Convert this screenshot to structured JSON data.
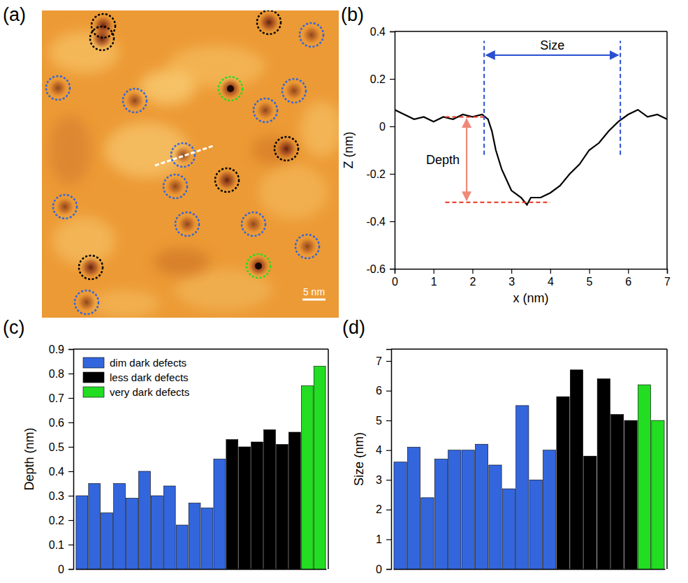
{
  "chart_data": [
    {
      "type": "image",
      "panel": "(a)",
      "scale_bar": "5 nm"
    },
    {
      "type": "line",
      "panel": "(b)",
      "x_label": "x (nm)",
      "y_label": "Z (nm)",
      "color": "#000000",
      "x": [
        0,
        0.25,
        0.5,
        0.75,
        1.0,
        1.25,
        1.5,
        1.75,
        2.0,
        2.25,
        2.4,
        2.5,
        2.6,
        2.75,
        3.0,
        3.25,
        3.4,
        3.5,
        3.75,
        4.0,
        4.25,
        4.5,
        4.75,
        5.0,
        5.25,
        5.5,
        5.75,
        6.0,
        6.25,
        6.5,
        6.75,
        7.0
      ],
      "values": [
        0.07,
        0.05,
        0.03,
        0.04,
        0.02,
        0.04,
        0.03,
        0.05,
        0.04,
        0.05,
        0.03,
        -0.02,
        -0.1,
        -0.18,
        -0.27,
        -0.3,
        -0.33,
        -0.3,
        -0.3,
        -0.28,
        -0.25,
        -0.2,
        -0.16,
        -0.1,
        -0.07,
        -0.02,
        0.02,
        0.05,
        0.07,
        0.04,
        0.05,
        0.03
      ],
      "xlim": [
        0,
        7
      ],
      "xticks": [
        0,
        1,
        2,
        3,
        4,
        5,
        6,
        7
      ],
      "ylim": [
        -0.6,
        0.4
      ],
      "yticks": [
        -0.6,
        -0.4,
        -0.2,
        0,
        0.2,
        0.4
      ],
      "annotations": [
        {
          "text": "Size",
          "x": [
            2.3,
            5.8
          ],
          "y": 0.3,
          "y_extent": [
            -0.12,
            0.36
          ],
          "color": "#2a4fd0"
        },
        {
          "text": "Depth",
          "y": [
            0.04,
            -0.32
          ],
          "x": 1.85,
          "x_extent": [
            1.3,
            4.0
          ],
          "color": "#e8331c"
        }
      ]
    },
    {
      "type": "bar",
      "panel": "(c)",
      "y_label": "Depth (nm)",
      "legend": "upper left",
      "tick_labels": "y",
      "categories": [
        null,
        null,
        null,
        null,
        null,
        null,
        null,
        null,
        null,
        null,
        null,
        null,
        null,
        null,
        null,
        null,
        null,
        null,
        null,
        null
      ],
      "series": [
        {
          "name": "dim dark defects",
          "color": "#3366dd",
          "values": [
            0.3,
            0.35,
            0.23,
            0.35,
            0.29,
            0.4,
            0.3,
            0.34,
            0.18,
            0.27,
            0.25,
            0.45,
            null,
            null,
            null,
            null,
            null,
            null,
            null,
            null
          ]
        },
        {
          "name": "less dark defects",
          "color": "#000000",
          "values": [
            null,
            null,
            null,
            null,
            null,
            null,
            null,
            null,
            null,
            null,
            null,
            null,
            0.53,
            0.5,
            0.52,
            0.57,
            0.51,
            0.56,
            null,
            null
          ]
        },
        {
          "name": "very dark defects",
          "color": "#22dd22",
          "values": [
            null,
            null,
            null,
            null,
            null,
            null,
            null,
            null,
            null,
            null,
            null,
            null,
            null,
            null,
            null,
            null,
            null,
            null,
            0.75,
            0.83
          ]
        }
      ],
      "ylim": [
        0,
        0.9
      ],
      "yticks": [
        0,
        0.1,
        0.2,
        0.3,
        0.4,
        0.5,
        0.6,
        0.7,
        0.8,
        0.9
      ]
    },
    {
      "type": "bar",
      "panel": "(d)",
      "y_label": "Size (nm)",
      "tick_labels": "y",
      "categories": [
        null,
        null,
        null,
        null,
        null,
        null,
        null,
        null,
        null,
        null,
        null,
        null,
        null,
        null,
        null,
        null,
        null,
        null,
        null,
        null
      ],
      "values": [
        3.6,
        4.1,
        2.4,
        3.7,
        4.0,
        4.0,
        4.2,
        3.5,
        2.7,
        5.5,
        3.0,
        4.0,
        5.8,
        6.7,
        3.8,
        6.4,
        5.2,
        5.0,
        6.2,
        5.0
      ],
      "colors": [
        "#3366dd",
        "#3366dd",
        "#3366dd",
        "#3366dd",
        "#3366dd",
        "#3366dd",
        "#3366dd",
        "#3366dd",
        "#3366dd",
        "#3366dd",
        "#3366dd",
        "#3366dd",
        "#000000",
        "#000000",
        "#000000",
        "#000000",
        "#000000",
        "#000000",
        "#22dd22",
        "#22dd22"
      ],
      "ylim": [
        0,
        7.4
      ],
      "yticks": [
        0,
        1,
        2,
        3,
        4,
        5,
        6,
        7
      ]
    }
  ]
}
